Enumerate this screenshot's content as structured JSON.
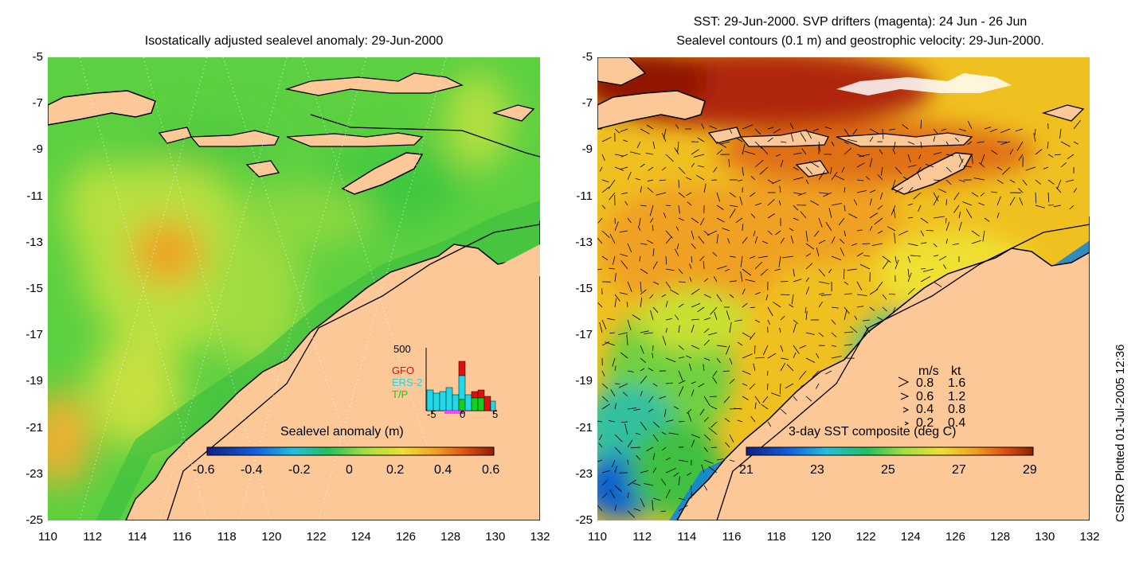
{
  "left_panel": {
    "title": "Isostatically adjusted sealevel anomaly: 29-Jun-2000",
    "colorbar_label": "Sealevel anomaly (m)",
    "colorbar_ticks": [
      "-0.6",
      "-0.4",
      "-0.2",
      "0",
      "0.2",
      "0.4",
      "0.6"
    ],
    "histogram": {
      "ymax_label": "500",
      "x_ticks": [
        "-5",
        "0",
        "5"
      ],
      "legend": [
        {
          "label": "GFO",
          "color": "#e01010"
        },
        {
          "label": "ERS-2",
          "color": "#20d8e8"
        },
        {
          "label": "T/P",
          "color": "#10d020"
        }
      ]
    }
  },
  "right_panel": {
    "title_line1": "SST: 29-Jun-2000. SVP drifters (magenta): 24 Jun - 26 Jun",
    "title_line2": "Sealevel contours (0.1 m) and geostrophic velocity: 29-Jun-2000.",
    "colorbar_label": "3-day SST composite (deg C)",
    "colorbar_ticks": [
      "21",
      "23",
      "25",
      "27",
      "29"
    ],
    "velocity_legend": {
      "header_ms": "m/s",
      "header_kt": "kt",
      "rows": [
        {
          "ms": "0.8",
          "kt": "1.6"
        },
        {
          "ms": "0.6",
          "kt": "1.2"
        },
        {
          "ms": "0.4",
          "kt": "0.8"
        },
        {
          "ms": "0.2",
          "kt": "0.4"
        }
      ]
    }
  },
  "axes": {
    "y_ticks": [
      "-5",
      "-7",
      "-9",
      "-11",
      "-13",
      "-15",
      "-17",
      "-19",
      "-21",
      "-23",
      "-25"
    ],
    "x_ticks": [
      "110",
      "112",
      "114",
      "116",
      "118",
      "120",
      "122",
      "124",
      "126",
      "128",
      "130",
      "132"
    ]
  },
  "credit": "CSIRO Plotted 01-Jul-2005 12:36",
  "colors": {
    "land": "#fdc898",
    "sla_base": "#5cd040",
    "sst_base": "#f0c020"
  }
}
